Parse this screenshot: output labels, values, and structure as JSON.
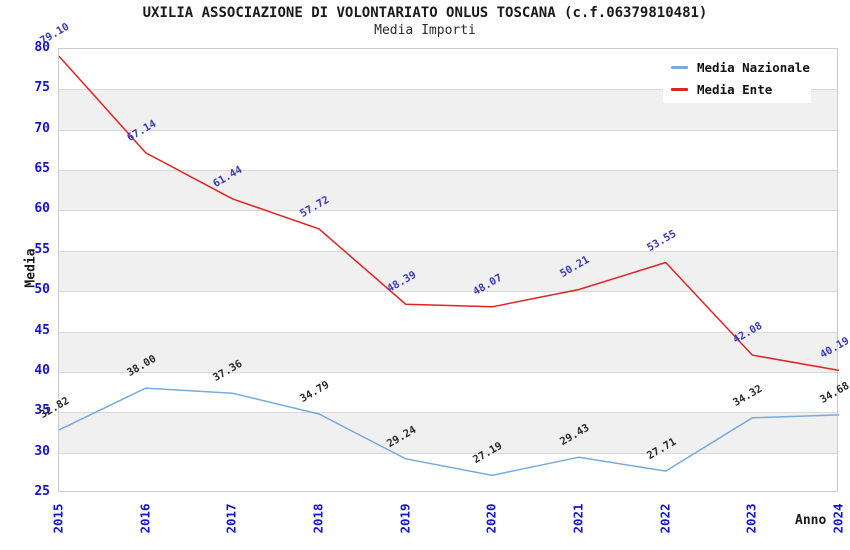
{
  "chart": {
    "title": "UXILIA ASSOCIAZIONE DI VOLONTARIATO ONLUS TOSCANA (c.f.06379810481)",
    "subtitle": "Media Importi",
    "y_axis_title": "Media",
    "x_axis_title": "Anno"
  },
  "colors": {
    "tick_label": "#1414cc",
    "band": "#f0f0f0",
    "gridline": "#d9d9d9",
    "plot_border": "#cccccc",
    "title_text": "#1a1a1a"
  },
  "chart_data": {
    "type": "line",
    "title": "UXILIA ASSOCIAZIONE DI VOLONTARIATO ONLUS TOSCANA (c.f.06379810481)",
    "subtitle": "Media Importi",
    "xlabel": "Anno",
    "ylabel": "Media",
    "categories": [
      "2015",
      "2016",
      "2017",
      "2018",
      "2019",
      "2020",
      "2021",
      "2022",
      "2023",
      "2024"
    ],
    "series": [
      {
        "name": "Media Nazionale",
        "color": "#78aade",
        "label_color": "#2a2a2a",
        "values": [
          32.82,
          38.0,
          37.36,
          34.79,
          29.24,
          27.19,
          29.43,
          27.71,
          34.32,
          34.68
        ]
      },
      {
        "name": "Media Ente",
        "color": "#e02424",
        "label_color": "#3a3ab8",
        "values": [
          79.1,
          67.14,
          61.44,
          57.72,
          48.39,
          48.07,
          50.21,
          53.55,
          42.08,
          40.19
        ]
      }
    ],
    "ylim": [
      25,
      80
    ],
    "ytick_step": 5,
    "grid": true,
    "bands_alternating": true,
    "legend_position": "top-right",
    "value_labels": "shown-rotated"
  }
}
